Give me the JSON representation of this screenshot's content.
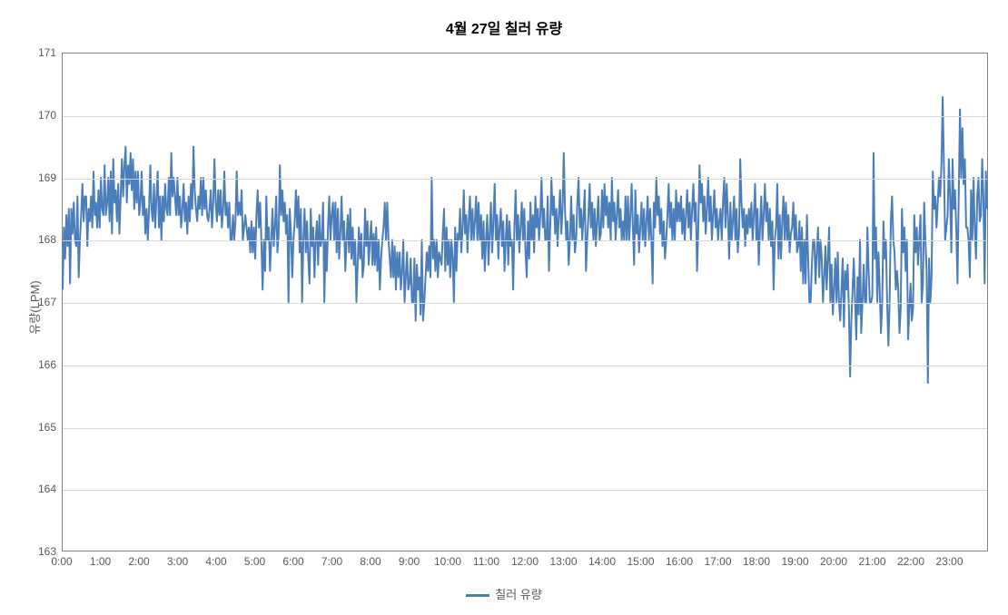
{
  "chart": {
    "type": "line",
    "title": "4월 27일 칠러 유량",
    "title_fontsize": 16,
    "y_axis_label": "유량(LPM)",
    "label_fontsize": 13,
    "tick_fontsize": 12,
    "background_color": "#ffffff",
    "plot_border_color": "#828282",
    "grid_color": "#d9d9d9",
    "text_color": "#595959",
    "ylim": [
      163,
      171
    ],
    "ytick_step": 1,
    "yticks": [
      163,
      164,
      165,
      166,
      167,
      168,
      169,
      170,
      171
    ],
    "xticks": [
      "0:00",
      "1:00",
      "2:00",
      "3:00",
      "4:00",
      "5:00",
      "6:00",
      "7:00",
      "8:00",
      "9:00",
      "10:00",
      "11:00",
      "12:00",
      "13:00",
      "14:00",
      "15:00",
      "16:00",
      "17:00",
      "18:00",
      "19:00",
      "20:00",
      "21:00",
      "22:00",
      "23:00"
    ],
    "x_range_minutes": [
      0,
      1440
    ],
    "line_width": 2,
    "series": [
      {
        "name": "칠러 유량",
        "color": "#4a7ebb",
        "values": [
          167.2,
          168.2,
          167.7,
          168.4,
          167.9,
          168.5,
          167.3,
          168.5,
          168.1,
          168.6,
          168.0,
          167.9,
          168.7,
          167.4,
          168.0,
          168.4,
          168.9,
          168.3,
          168.7,
          168.7,
          167.9,
          168.5,
          168.3,
          168.7,
          168.2,
          169.1,
          168.4,
          168.6,
          168.2,
          168.8,
          168.2,
          169.0,
          168.5,
          168.4,
          169.2,
          168.4,
          168.6,
          169.0,
          168.3,
          169.1,
          168.1,
          169.3,
          168.6,
          168.8,
          168.3,
          168.9,
          168.1,
          168.7,
          169.3,
          168.7,
          169.2,
          169.5,
          168.6,
          169.2,
          168.9,
          169.4,
          168.8,
          169.3,
          168.5,
          169.1,
          168.6,
          169.1,
          168.4,
          168.6,
          169.1,
          168.4,
          168.7,
          168.1,
          168.5,
          168.0,
          168.5,
          169.2,
          168.5,
          168.3,
          168.9,
          168.2,
          168.7,
          169.1,
          168.2,
          168.7,
          168.0,
          168.7,
          168.3,
          168.9,
          168.5,
          168.4,
          169.0,
          168.4,
          169.4,
          168.7,
          169.0,
          168.7,
          168.4,
          169.0,
          168.4,
          168.7,
          168.2,
          168.5,
          168.9,
          168.3,
          168.6,
          168.1,
          168.7,
          168.3,
          168.9,
          168.5,
          169.5,
          168.8,
          168.5,
          168.3,
          168.7,
          168.5,
          169.0,
          168.4,
          169.0,
          168.5,
          168.8,
          168.4,
          168.3,
          168.5,
          168.8,
          168.2,
          168.6,
          169.3,
          168.6,
          168.3,
          168.8,
          168.4,
          168.8,
          168.2,
          168.5,
          169.1,
          168.4,
          168.6,
          168.2,
          168.6,
          168.0,
          168.0,
          168.4,
          168.0,
          168.3,
          169.1,
          168.4,
          168.6,
          168.4,
          168.8,
          168.0,
          168.2,
          168.4,
          168.2,
          168.0,
          168.2,
          167.8,
          168.3,
          167.8,
          168.2,
          167.7,
          168.4,
          168.8,
          168.2,
          168.6,
          168.0,
          167.2,
          168.0,
          167.5,
          168.7,
          168.0,
          168.2,
          167.5,
          168.0,
          168.5,
          167.9,
          168.2,
          168.7,
          167.8,
          168.1,
          169.2,
          168.4,
          168.8,
          168.3,
          168.6,
          168.1,
          168.4,
          167.0,
          168.5,
          168.1,
          167.4,
          168.0,
          168.3,
          168.8,
          168.2,
          168.7,
          167.8,
          168.5,
          167.0,
          168.0,
          168.5,
          167.8,
          168.3,
          167.7,
          167.3,
          168.5,
          167.9,
          168.2,
          167.4,
          168.0,
          168.3,
          167.6,
          168.4,
          167.9,
          168.0,
          168.6,
          167.0,
          168.0,
          167.5,
          168.2,
          168.7,
          168.0,
          168.4,
          168.6,
          168.0,
          168.6,
          167.8,
          168.5,
          167.7,
          168.1,
          168.7,
          168.0,
          168.3,
          167.5,
          168.0,
          168.4,
          167.8,
          168.5,
          167.7,
          168.2,
          167.6,
          168.0,
          167.0,
          167.6,
          168.2,
          167.7,
          168.1,
          167.4,
          167.6,
          168.5,
          167.9,
          168.3,
          167.6,
          168.0,
          168.3,
          167.6,
          168.1,
          167.6,
          168.2,
          167.5,
          168.0,
          167.2,
          167.7,
          168.0,
          168.2,
          168.6,
          168.0,
          168.6,
          168.0,
          167.7,
          167.4,
          168.0,
          167.4,
          167.9,
          167.2,
          167.8,
          167.4,
          167.8,
          167.2,
          167.5,
          168.0,
          167.0,
          167.4,
          167.8,
          167.2,
          167.3,
          167.7,
          167.0,
          167.0,
          167.7,
          166.7,
          167.6,
          167.2,
          167.4,
          166.8,
          168.0,
          166.7,
          167.0,
          167.4,
          167.8,
          167.5,
          167.9,
          167.4,
          169.0,
          167.7,
          168.0,
          167.5,
          168.0,
          167.4,
          167.8,
          167.7,
          167.6,
          168.1,
          168.5,
          167.5,
          168.2,
          167.6,
          168.0,
          167.4,
          168.0,
          167.7,
          167.0,
          168.2,
          167.5,
          168.1,
          168.0,
          168.5,
          167.8,
          168.2,
          168.8,
          168.1,
          168.4,
          167.8,
          168.3,
          168.7,
          168.0,
          168.5,
          168.0,
          168.3,
          168.7,
          168.0,
          168.6,
          168.0,
          168.4,
          167.7,
          168.3,
          167.5,
          168.0,
          168.4,
          167.6,
          168.1,
          168.6,
          167.8,
          168.3,
          168.9,
          168.0,
          168.4,
          167.7,
          168.2,
          168.5,
          167.9,
          168.3,
          167.5,
          168.0,
          168.4,
          167.6,
          168.3,
          167.9,
          168.0,
          167.2,
          168.2,
          168.8,
          168.0,
          168.4,
          167.8,
          168.2,
          168.6,
          168.0,
          168.5,
          167.8,
          167.4,
          168.3,
          167.7,
          168.6,
          168.0,
          168.4,
          167.8,
          168.7,
          168.2,
          168.5,
          168.0,
          168.4,
          169.0,
          168.2,
          168.5,
          168.0,
          168.0,
          168.7,
          167.5,
          168.2,
          169.0,
          168.4,
          168.7,
          168.1,
          168.5,
          167.9,
          168.4,
          168.8,
          168.1,
          168.5,
          169.4,
          168.5,
          168.0,
          168.3,
          167.6,
          168.0,
          168.7,
          168.0,
          168.4,
          167.8,
          168.0,
          168.6,
          169.0,
          168.2,
          168.5,
          168.0,
          168.4,
          168.8,
          167.5,
          168.0,
          168.4,
          168.9,
          168.2,
          168.6,
          168.0,
          168.5,
          167.9,
          168.3,
          168.7,
          168.0,
          168.1,
          168.8,
          168.2,
          168.9,
          168.4,
          168.7,
          168.2,
          168.6,
          168.0,
          169.0,
          168.3,
          168.6,
          168.0,
          168.4,
          168.8,
          168.2,
          168.5,
          168.0,
          168.3,
          168.0,
          168.7,
          168.0,
          168.7,
          168.0,
          168.4,
          168.9,
          168.2,
          167.6,
          168.8,
          168.1,
          168.4,
          167.8,
          168.2,
          168.6,
          168.0,
          168.5,
          167.9,
          168.3,
          168.7,
          168.0,
          168.5,
          168.0,
          167.3,
          168.6,
          168.2,
          169.0,
          168.4,
          168.7,
          168.1,
          168.5,
          167.9,
          168.3,
          167.7,
          168.0,
          168.4,
          168.9,
          168.2,
          168.6,
          168.0,
          168.5,
          168.0,
          168.8,
          168.3,
          168.6,
          168.3,
          168.7,
          168.1,
          168.5,
          168.0,
          168.4,
          168.8,
          168.2,
          168.6,
          168.0,
          168.5,
          168.9,
          168.3,
          168.6,
          167.5,
          168.2,
          169.2,
          168.6,
          168.9,
          168.3,
          168.7,
          168.1,
          168.5,
          169.0,
          168.3,
          168.7,
          168.0,
          168.4,
          168.8,
          168.2,
          168.5,
          168.0,
          168.3,
          168.5,
          168.0,
          168.6,
          169.0,
          168.2,
          168.9,
          168.4,
          167.7,
          168.6,
          168.0,
          168.3,
          168.7,
          168.0,
          168.5,
          167.8,
          168.1,
          169.3,
          168.6,
          168.2,
          168.5,
          167.9,
          168.4,
          168.1,
          168.5,
          168.2,
          168.6,
          168.0,
          168.4,
          168.9,
          168.0,
          168.5,
          167.6,
          168.2,
          168.7,
          168.0,
          168.4,
          168.9,
          168.3,
          168.6,
          168.0,
          168.5,
          167.9,
          168.3,
          167.2,
          168.0,
          168.2,
          168.9,
          167.7,
          168.4,
          167.7,
          168.3,
          168.7,
          168.0,
          168.6,
          168.0,
          168.4,
          167.8,
          168.1,
          168.2,
          168.6,
          168.0,
          168.4,
          167.8,
          167.9,
          168.3,
          167.5,
          168.2,
          167.3,
          168.0,
          167.3,
          168.4,
          167.7,
          167.0,
          167.0,
          167.6,
          168.0,
          168.0,
          167.3,
          167.8,
          168.2,
          167.4,
          168.0,
          167.7,
          167.0,
          167.4,
          167.9,
          167.2,
          167.7,
          168.2,
          167.0,
          167.6,
          166.8,
          167.2,
          167.7,
          167.0,
          167.8,
          167.0,
          166.7,
          167.2,
          167.7,
          166.6,
          167.5,
          167.2,
          167.6,
          166.9,
          165.8,
          166.7,
          167.2,
          167.7,
          167.0,
          166.4,
          167.4,
          166.8,
          168.0,
          166.5,
          167.0,
          167.6,
          167.0,
          167.0,
          168.2,
          167.5,
          167.0,
          167.0,
          167.1,
          169.4,
          167.7,
          168.2,
          167.0,
          167.8,
          167.2,
          166.5,
          167.0,
          168.3,
          167.7,
          168.0,
          167.0,
          166.3,
          167.0,
          168.3,
          168.7,
          168.0,
          167.8,
          167.2,
          167.5,
          167.2,
          166.5,
          166.9,
          168.5,
          167.8,
          168.2,
          167.5,
          168.0,
          166.4,
          166.9,
          167.3,
          166.7,
          166.9,
          168.4,
          167.8,
          168.2,
          167.6,
          168.0,
          168.4,
          167.0,
          167.3,
          168.6,
          168.0,
          167.5,
          165.7,
          167.7,
          167.0,
          167.4,
          169.1,
          168.5,
          168.7,
          168.2,
          168.6,
          169.0,
          168.7,
          169.2,
          170.3,
          169.2,
          168.0,
          168.2,
          168.4,
          169.3,
          168.7,
          167.8,
          169.3,
          168.5,
          168.8,
          168.2,
          167.3,
          168.7,
          170.1,
          169.0,
          169.8,
          168.9,
          169.3,
          168.2,
          168.2,
          168.0,
          167.4,
          168.8,
          168.0,
          169.0,
          168.2,
          167.7,
          168.7,
          169.0,
          168.3,
          168.4,
          169.3,
          168.7,
          167.3,
          169.1,
          168.5
        ]
      }
    ],
    "legend": {
      "position": "bottom",
      "label": "칠러 유량"
    }
  }
}
